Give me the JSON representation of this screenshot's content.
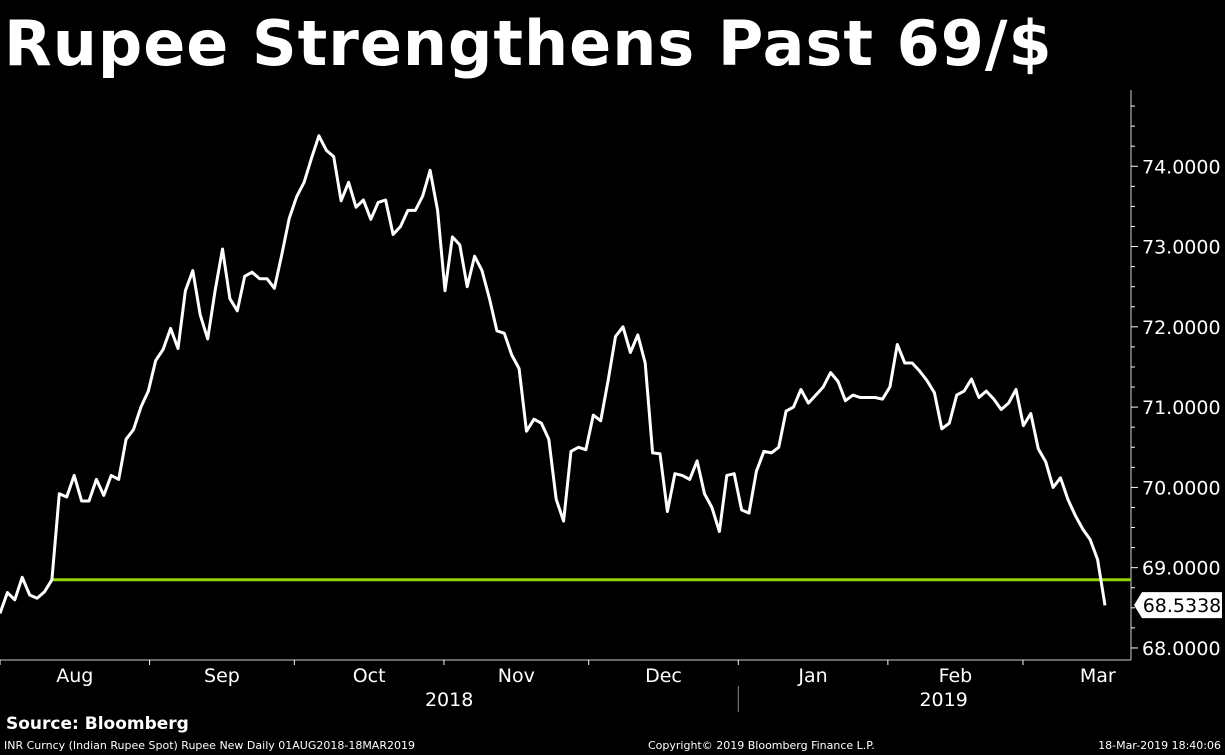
{
  "title": "Rupee Strengthens Past 69/$",
  "source": "Source: Bloomberg",
  "footer": {
    "left": "INR Curncy (Indian Rupee Spot) Rupee New  Daily 01AUG2018-18MAR2019",
    "middle": "Copyright© 2019 Bloomberg Finance L.P.",
    "right": "18-Mar-2019 18:40:06"
  },
  "chart_data": {
    "type": "line",
    "title": "Rupee Strengthens Past 69/$",
    "x_months": [
      "Aug",
      "Sep",
      "Oct",
      "Nov",
      "Dec",
      "Jan",
      "Feb",
      "Mar"
    ],
    "x_years": [
      "2018",
      "2019"
    ],
    "y_ticks": [
      "68.0000",
      "69.0000",
      "70.0000",
      "71.0000",
      "72.0000",
      "73.0000",
      "74.0000"
    ],
    "ylim": [
      67.85,
      74.95
    ],
    "last_value_label": "68.5338",
    "reference_line": {
      "value": 68.85,
      "color": "#8fd400"
    },
    "series": [
      {
        "line_color": "#ffffff",
        "start": "2018-08-01",
        "end": "2019-03-18",
        "values": [
          68.43,
          68.69,
          68.6,
          68.88,
          68.66,
          68.62,
          68.7,
          68.85,
          69.92,
          69.88,
          70.15,
          69.83,
          69.83,
          70.1,
          69.9,
          70.15,
          70.1,
          70.6,
          70.72,
          71.0,
          71.2,
          71.58,
          71.72,
          71.98,
          71.73,
          72.45,
          72.7,
          72.15,
          71.85,
          72.45,
          72.97,
          72.35,
          72.2,
          72.63,
          72.68,
          72.6,
          72.6,
          72.48,
          72.9,
          73.35,
          73.62,
          73.8,
          74.1,
          74.38,
          74.2,
          74.12,
          73.57,
          73.8,
          73.49,
          73.58,
          73.34,
          73.55,
          73.58,
          73.15,
          73.25,
          73.45,
          73.45,
          73.63,
          73.95,
          73.45,
          72.45,
          73.12,
          73.02,
          72.5,
          72.88,
          72.7,
          72.35,
          71.95,
          71.92,
          71.65,
          71.48,
          70.7,
          70.85,
          70.8,
          70.6,
          69.85,
          69.58,
          70.45,
          70.5,
          70.47,
          70.9,
          70.83,
          71.33,
          71.88,
          72.0,
          71.68,
          71.9,
          71.55,
          70.43,
          70.42,
          69.7,
          70.17,
          70.15,
          70.1,
          70.33,
          69.92,
          69.75,
          69.45,
          70.15,
          70.17,
          69.72,
          69.68,
          70.2,
          70.45,
          70.43,
          70.5,
          70.95,
          71.0,
          71.22,
          71.05,
          71.15,
          71.25,
          71.43,
          71.32,
          71.08,
          71.15,
          71.12,
          71.12,
          71.12,
          71.1,
          71.25,
          71.78,
          71.55,
          71.55,
          71.45,
          71.33,
          71.18,
          70.73,
          70.8,
          71.15,
          71.2,
          71.35,
          71.12,
          71.2,
          71.1,
          70.97,
          71.05,
          71.22,
          70.77,
          70.92,
          70.48,
          70.32,
          70.0,
          70.12,
          69.85,
          69.65,
          69.48,
          69.35,
          69.1,
          68.53
        ]
      }
    ]
  }
}
